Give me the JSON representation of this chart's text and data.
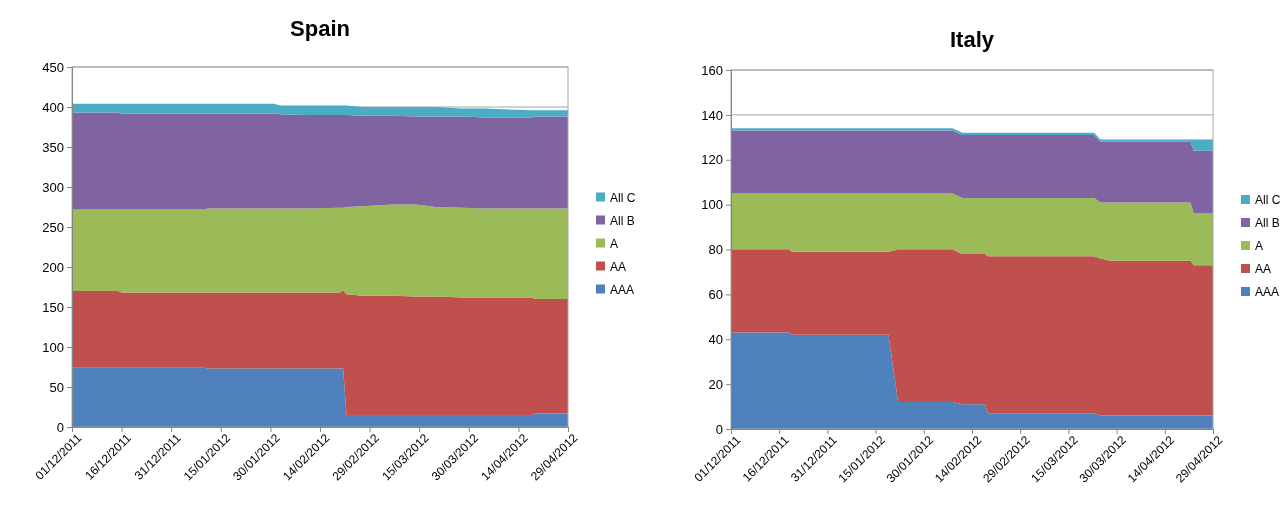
{
  "chart_data": [
    {
      "type": "area",
      "title": "Spain",
      "stacked": true,
      "grid": "y",
      "legend": "right",
      "x": [
        "2011-12-01",
        "2011-12-15",
        "2011-12-16",
        "2012-01-10",
        "2012-01-11",
        "2012-01-31",
        "2012-02-02",
        "2012-02-10",
        "2012-02-20",
        "2012-02-21",
        "2012-02-22",
        "2012-02-27",
        "2012-03-07",
        "2012-03-14",
        "2012-03-20",
        "2012-03-28",
        "2012-04-04",
        "2012-04-18",
        "2012-04-19",
        "2012-04-29"
      ],
      "series": [
        {
          "name": "AAA",
          "color": "#4f81bd",
          "values": [
            74,
            74,
            74,
            74,
            73,
            73,
            73,
            73,
            73,
            73,
            15,
            15,
            15,
            15,
            15,
            15,
            15,
            15,
            17,
            17
          ]
        },
        {
          "name": "AA",
          "color": "#c0504d",
          "values": [
            96,
            96,
            94,
            94,
            95,
            95,
            95,
            95,
            95,
            98,
            151,
            149,
            149,
            148,
            148,
            147,
            147,
            147,
            143,
            143
          ]
        },
        {
          "name": "A",
          "color": "#9bbb59",
          "values": [
            102,
            102,
            104,
            104,
            105,
            105,
            105,
            105,
            106,
            103,
            109,
            112,
            114,
            115,
            112,
            112,
            111,
            111,
            113,
            113
          ]
        },
        {
          "name": "All B",
          "color": "#8064a2",
          "values": [
            121,
            121,
            120,
            120,
            119,
            119,
            118,
            117,
            116,
            116,
            115,
            113,
            111,
            110,
            113,
            114,
            114,
            114,
            115,
            115
          ]
        },
        {
          "name": "All C",
          "color": "#4bacc6",
          "values": [
            11,
            11,
            12,
            12,
            12,
            12,
            11,
            12,
            12,
            12,
            12,
            11,
            11,
            12,
            12,
            10,
            11,
            9,
            8,
            8
          ]
        }
      ],
      "xlim": [
        "2011-12-01",
        "2012-04-29"
      ],
      "xticks": [
        {
          "value": "2011-12-01",
          "label": "01/12/2011"
        },
        {
          "value": "2011-12-16",
          "label": "16/12/2011"
        },
        {
          "value": "2011-12-31",
          "label": "31/12/2011"
        },
        {
          "value": "2012-01-15",
          "label": "15/01/2012"
        },
        {
          "value": "2012-01-30",
          "label": "30/01/2012"
        },
        {
          "value": "2012-02-14",
          "label": "14/02/2012"
        },
        {
          "value": "2012-02-29",
          "label": "29/02/2012"
        },
        {
          "value": "2012-03-15",
          "label": "15/03/2012"
        },
        {
          "value": "2012-03-30",
          "label": "30/03/2012"
        },
        {
          "value": "2012-04-14",
          "label": "14/04/2012"
        },
        {
          "value": "2012-04-29",
          "label": "29/04/2012"
        }
      ],
      "ylim": [
        0,
        450
      ],
      "yticks": [
        0,
        50,
        100,
        150,
        200,
        250,
        300,
        350,
        400,
        450
      ]
    },
    {
      "type": "area",
      "title": "Italy",
      "stacked": true,
      "grid": "y",
      "legend": "right",
      "x": [
        "2011-12-01",
        "2011-12-19",
        "2011-12-20",
        "2012-01-19",
        "2012-01-22",
        "2012-02-08",
        "2012-02-11",
        "2012-02-18",
        "2012-02-19",
        "2012-03-23",
        "2012-03-25",
        "2012-03-28",
        "2012-04-22",
        "2012-04-23",
        "2012-04-29"
      ],
      "series": [
        {
          "name": "AAA",
          "color": "#4f81bd",
          "values": [
            43,
            43,
            42,
            42,
            12,
            12,
            11,
            11,
            7,
            7,
            6,
            6,
            6,
            6,
            6
          ]
        },
        {
          "name": "AA",
          "color": "#c0504d",
          "values": [
            37,
            37,
            37,
            37,
            68,
            68,
            67,
            67,
            70,
            70,
            70,
            69,
            69,
            67,
            67
          ]
        },
        {
          "name": "A",
          "color": "#9bbb59",
          "values": [
            25,
            25,
            26,
            26,
            25,
            25,
            25,
            25,
            26,
            26,
            25,
            26,
            26,
            23,
            23
          ]
        },
        {
          "name": "All B",
          "color": "#8064a2",
          "values": [
            28,
            28,
            28,
            28,
            28,
            28,
            28,
            28,
            28,
            28,
            27,
            27,
            27,
            28,
            28
          ]
        },
        {
          "name": "All C",
          "color": "#4bacc6",
          "values": [
            1,
            1,
            1,
            1,
            1,
            1,
            1,
            1,
            1,
            1,
            1,
            1,
            1,
            5,
            5
          ]
        }
      ],
      "xlim": [
        "2011-12-01",
        "2012-04-29"
      ],
      "xticks": [
        {
          "value": "2011-12-01",
          "label": "01/12/2011"
        },
        {
          "value": "2011-12-16",
          "label": "16/12/2011"
        },
        {
          "value": "2011-12-31",
          "label": "31/12/2011"
        },
        {
          "value": "2012-01-15",
          "label": "15/01/2012"
        },
        {
          "value": "2012-01-30",
          "label": "30/01/2012"
        },
        {
          "value": "2012-02-14",
          "label": "14/02/2012"
        },
        {
          "value": "2012-02-29",
          "label": "29/02/2012"
        },
        {
          "value": "2012-03-15",
          "label": "15/03/2012"
        },
        {
          "value": "2012-03-30",
          "label": "30/03/2012"
        },
        {
          "value": "2012-04-14",
          "label": "14/04/2012"
        },
        {
          "value": "2012-04-29",
          "label": "29/04/2012"
        }
      ],
      "ylim": [
        0,
        160
      ],
      "yticks": [
        0,
        20,
        40,
        60,
        80,
        100,
        120,
        140,
        160
      ]
    }
  ]
}
